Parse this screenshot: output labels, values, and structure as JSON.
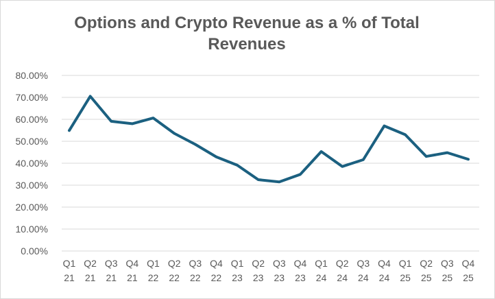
{
  "chart_data": {
    "type": "line",
    "title": "Options and Crypto Revenue as a % of Total Revenues",
    "xlabel": "",
    "ylabel": "",
    "categories": [
      [
        "Q1",
        "21"
      ],
      [
        "Q2",
        "21"
      ],
      [
        "Q3",
        "21"
      ],
      [
        "Q4",
        "21"
      ],
      [
        "Q1",
        "22"
      ],
      [
        "Q2",
        "22"
      ],
      [
        "Q3",
        "22"
      ],
      [
        "Q4",
        "22"
      ],
      [
        "Q1",
        "23"
      ],
      [
        "Q2",
        "23"
      ],
      [
        "Q3",
        "23"
      ],
      [
        "Q4",
        "23"
      ],
      [
        "Q1",
        "24"
      ],
      [
        "Q2",
        "24"
      ],
      [
        "Q3",
        "24"
      ],
      [
        "Q4",
        "24"
      ],
      [
        "Q1",
        "25"
      ],
      [
        "Q2",
        "25"
      ],
      [
        "Q3",
        "25"
      ],
      [
        "Q4",
        "25"
      ]
    ],
    "series": [
      {
        "name": "Options and Crypto Revenue %",
        "color": "#1b6080",
        "values": [
          54.9,
          70.5,
          59.1,
          58.0,
          60.6,
          53.6,
          48.6,
          42.9,
          39.1,
          32.5,
          31.5,
          34.9,
          45.3,
          38.5,
          41.6,
          57.0,
          53.0,
          43.1,
          44.8,
          41.8
        ]
      }
    ],
    "ylim": [
      0,
      80
    ],
    "yticks": [
      "0.00%",
      "10.00%",
      "20.00%",
      "30.00%",
      "40.00%",
      "50.00%",
      "60.00%",
      "70.00%",
      "80.00%"
    ],
    "grid": true,
    "legend": "none"
  }
}
